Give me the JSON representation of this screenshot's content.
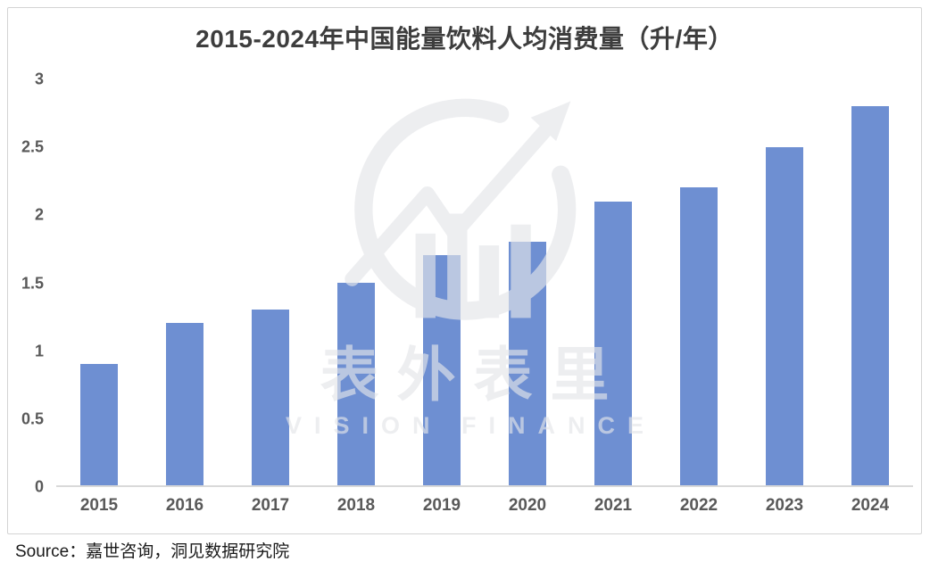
{
  "chart_data": {
    "type": "bar",
    "title": "2015-2024年中国能量饮料人均消费量（升/年）",
    "categories": [
      "2015",
      "2016",
      "2017",
      "2018",
      "2019",
      "2020",
      "2021",
      "2022",
      "2023",
      "2024"
    ],
    "values": [
      0.9,
      1.2,
      1.3,
      1.5,
      1.7,
      1.8,
      2.1,
      2.2,
      2.5,
      2.8
    ],
    "xlabel": "",
    "ylabel": "",
    "ylim": [
      0,
      3
    ],
    "yticks": [
      0,
      0.5,
      1,
      1.5,
      2,
      2.5,
      3
    ],
    "ytick_labels": [
      "0",
      "0.5",
      "1",
      "1.5",
      "2",
      "2.5",
      "3"
    ],
    "grid": false,
    "legend": false,
    "data_labels": false,
    "bar_color": "#6E8FD2",
    "baseline_color": "#D9D9D9"
  },
  "watermark": {
    "logo": "circle-trend-arrow-icon",
    "text": "表外表里",
    "subtext": "VISION FINANCE"
  },
  "source_note": "Source：嘉世咨询，洞见数据研究院"
}
